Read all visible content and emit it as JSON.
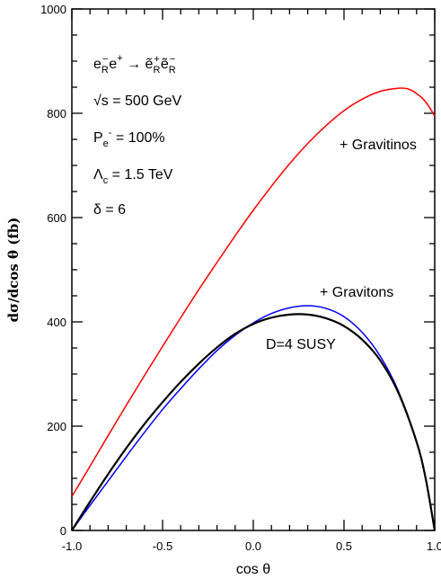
{
  "chart_data": {
    "type": "line",
    "xlabel": "cos θ",
    "ylabel": "dσ/dcos θ (fb)",
    "xlim": [
      -1.0,
      1.0
    ],
    "ylim": [
      0,
      1000
    ],
    "x_ticks": [
      "-1.0",
      "-0.5",
      "0.0",
      "0.5",
      "1.0"
    ],
    "y_ticks": [
      "0",
      "200",
      "400",
      "600",
      "800",
      "1000"
    ],
    "grid": false,
    "series": [
      {
        "name": "+ Gravitinos",
        "color": "#ff0000",
        "x": [
          -1.0,
          -0.9,
          -0.8,
          -0.7,
          -0.6,
          -0.5,
          -0.4,
          -0.3,
          -0.2,
          -0.1,
          0.0,
          0.1,
          0.2,
          0.3,
          0.4,
          0.5,
          0.6,
          0.7,
          0.8,
          0.85,
          0.9,
          0.95,
          1.0
        ],
        "y": [
          65,
          123,
          182,
          240,
          297,
          353,
          408,
          462,
          514,
          565,
          614,
          660,
          703,
          742,
          776,
          805,
          827,
          842,
          848,
          847,
          838,
          822,
          795
        ]
      },
      {
        "name": "+ Gravitons",
        "color": "#0000ff",
        "x": [
          -1.0,
          -0.9,
          -0.8,
          -0.7,
          -0.6,
          -0.5,
          -0.4,
          -0.3,
          -0.2,
          -0.1,
          0.0,
          0.1,
          0.2,
          0.3,
          0.4,
          0.5,
          0.6,
          0.7,
          0.8,
          0.9,
          0.95,
          1.0
        ],
        "y": [
          0,
          48,
          95,
          142,
          188,
          232,
          272,
          310,
          345,
          374,
          398,
          416,
          427,
          431,
          426,
          410,
          380,
          334,
          267,
          170,
          100,
          0
        ]
      },
      {
        "name": "D=4 SUSY",
        "color": "#000000",
        "x": [
          -1.0,
          -0.9,
          -0.8,
          -0.7,
          -0.6,
          -0.5,
          -0.4,
          -0.3,
          -0.2,
          -0.1,
          0.0,
          0.1,
          0.2,
          0.3,
          0.4,
          0.5,
          0.6,
          0.7,
          0.8,
          0.9,
          0.95,
          1.0
        ],
        "y": [
          0,
          55,
          108,
          158,
          204,
          246,
          285,
          320,
          351,
          377,
          396,
          408,
          414,
          414,
          407,
          392,
          366,
          326,
          264,
          170,
          100,
          0
        ]
      }
    ],
    "annotations": {
      "process_main": "e",
      "process_sub1": "R",
      "process_sup1": "−",
      "process_e2": "e",
      "process_sup2": "+",
      "process_arrow": " → ",
      "process_e3": "ẽ",
      "process_sub3": "R",
      "process_sup3": "+",
      "process_e4": "ẽ",
      "process_sub4": "R",
      "process_sup4": "−",
      "sqrt_s": "√s = 500 GeV",
      "pol_main": "P",
      "pol_sub": "e",
      "pol_sup": "-",
      "pol_rest": " = 100%",
      "lambda_main": "Λ",
      "lambda_sub": "c",
      "lambda_rest": " = 1.5 TeV",
      "delta": "δ = 6"
    }
  }
}
